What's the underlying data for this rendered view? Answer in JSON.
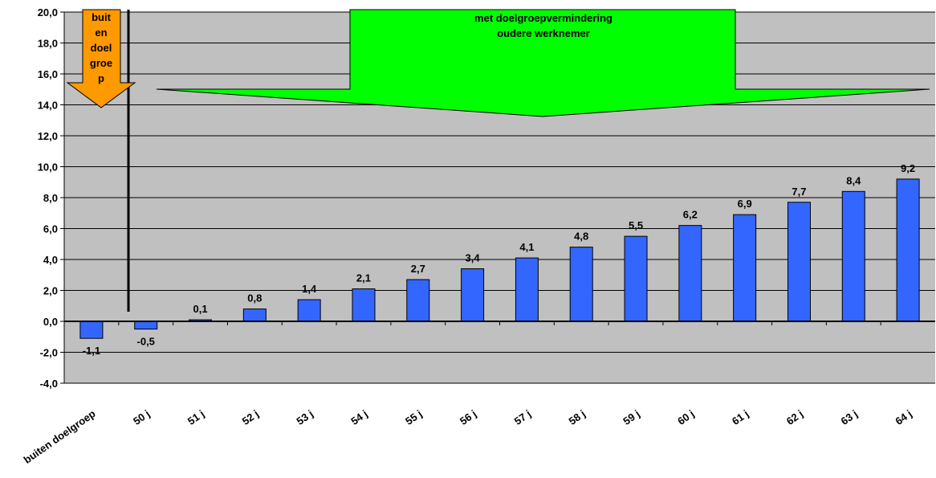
{
  "chart_data": {
    "type": "bar",
    "categories": [
      "buiten doelgroep",
      "50 j",
      "51 j",
      "52 j",
      "53 j",
      "54 j",
      "55 j",
      "56 j",
      "57 j",
      "58 j",
      "59 j",
      "60 j",
      "61 j",
      "62 j",
      "63 j",
      "64 j"
    ],
    "values": [
      -1.1,
      -0.5,
      0.1,
      0.8,
      1.4,
      2.1,
      2.7,
      3.4,
      4.1,
      4.8,
      5.5,
      6.2,
      6.9,
      7.7,
      8.4,
      9.2
    ],
    "value_labels": [
      "-1,1",
      "-0,5",
      "0,1",
      "0,8",
      "1,4",
      "2,1",
      "2,7",
      "3,4",
      "4,1",
      "4,8",
      "5,5",
      "6,2",
      "6,9",
      "7,7",
      "8,4",
      "9,2"
    ],
    "ylim": [
      -4,
      20
    ],
    "yticks": [
      -4,
      -2,
      0,
      2,
      4,
      6,
      8,
      10,
      12,
      14,
      16,
      18,
      20
    ],
    "ytick_labels": [
      "-4,0",
      "-2,0",
      "0,0",
      "2,0",
      "4,0",
      "6,0",
      "8,0",
      "10,0",
      "12,0",
      "14,0",
      "16,0",
      "18,0",
      "20,0"
    ],
    "grid": true,
    "legend": "none",
    "colors": {
      "bar": "#3366ff",
      "plot_bg": "#c0c0c0",
      "orange_arrow": "#ff9900",
      "green_arrow": "#00ff00"
    },
    "annotations": {
      "orange_arrow_lines": [
        "buit",
        "en",
        "doel",
        "groe",
        "p"
      ],
      "green_arrow_lines": [
        "met doelgroepvermindering",
        "oudere werknemer"
      ]
    }
  }
}
